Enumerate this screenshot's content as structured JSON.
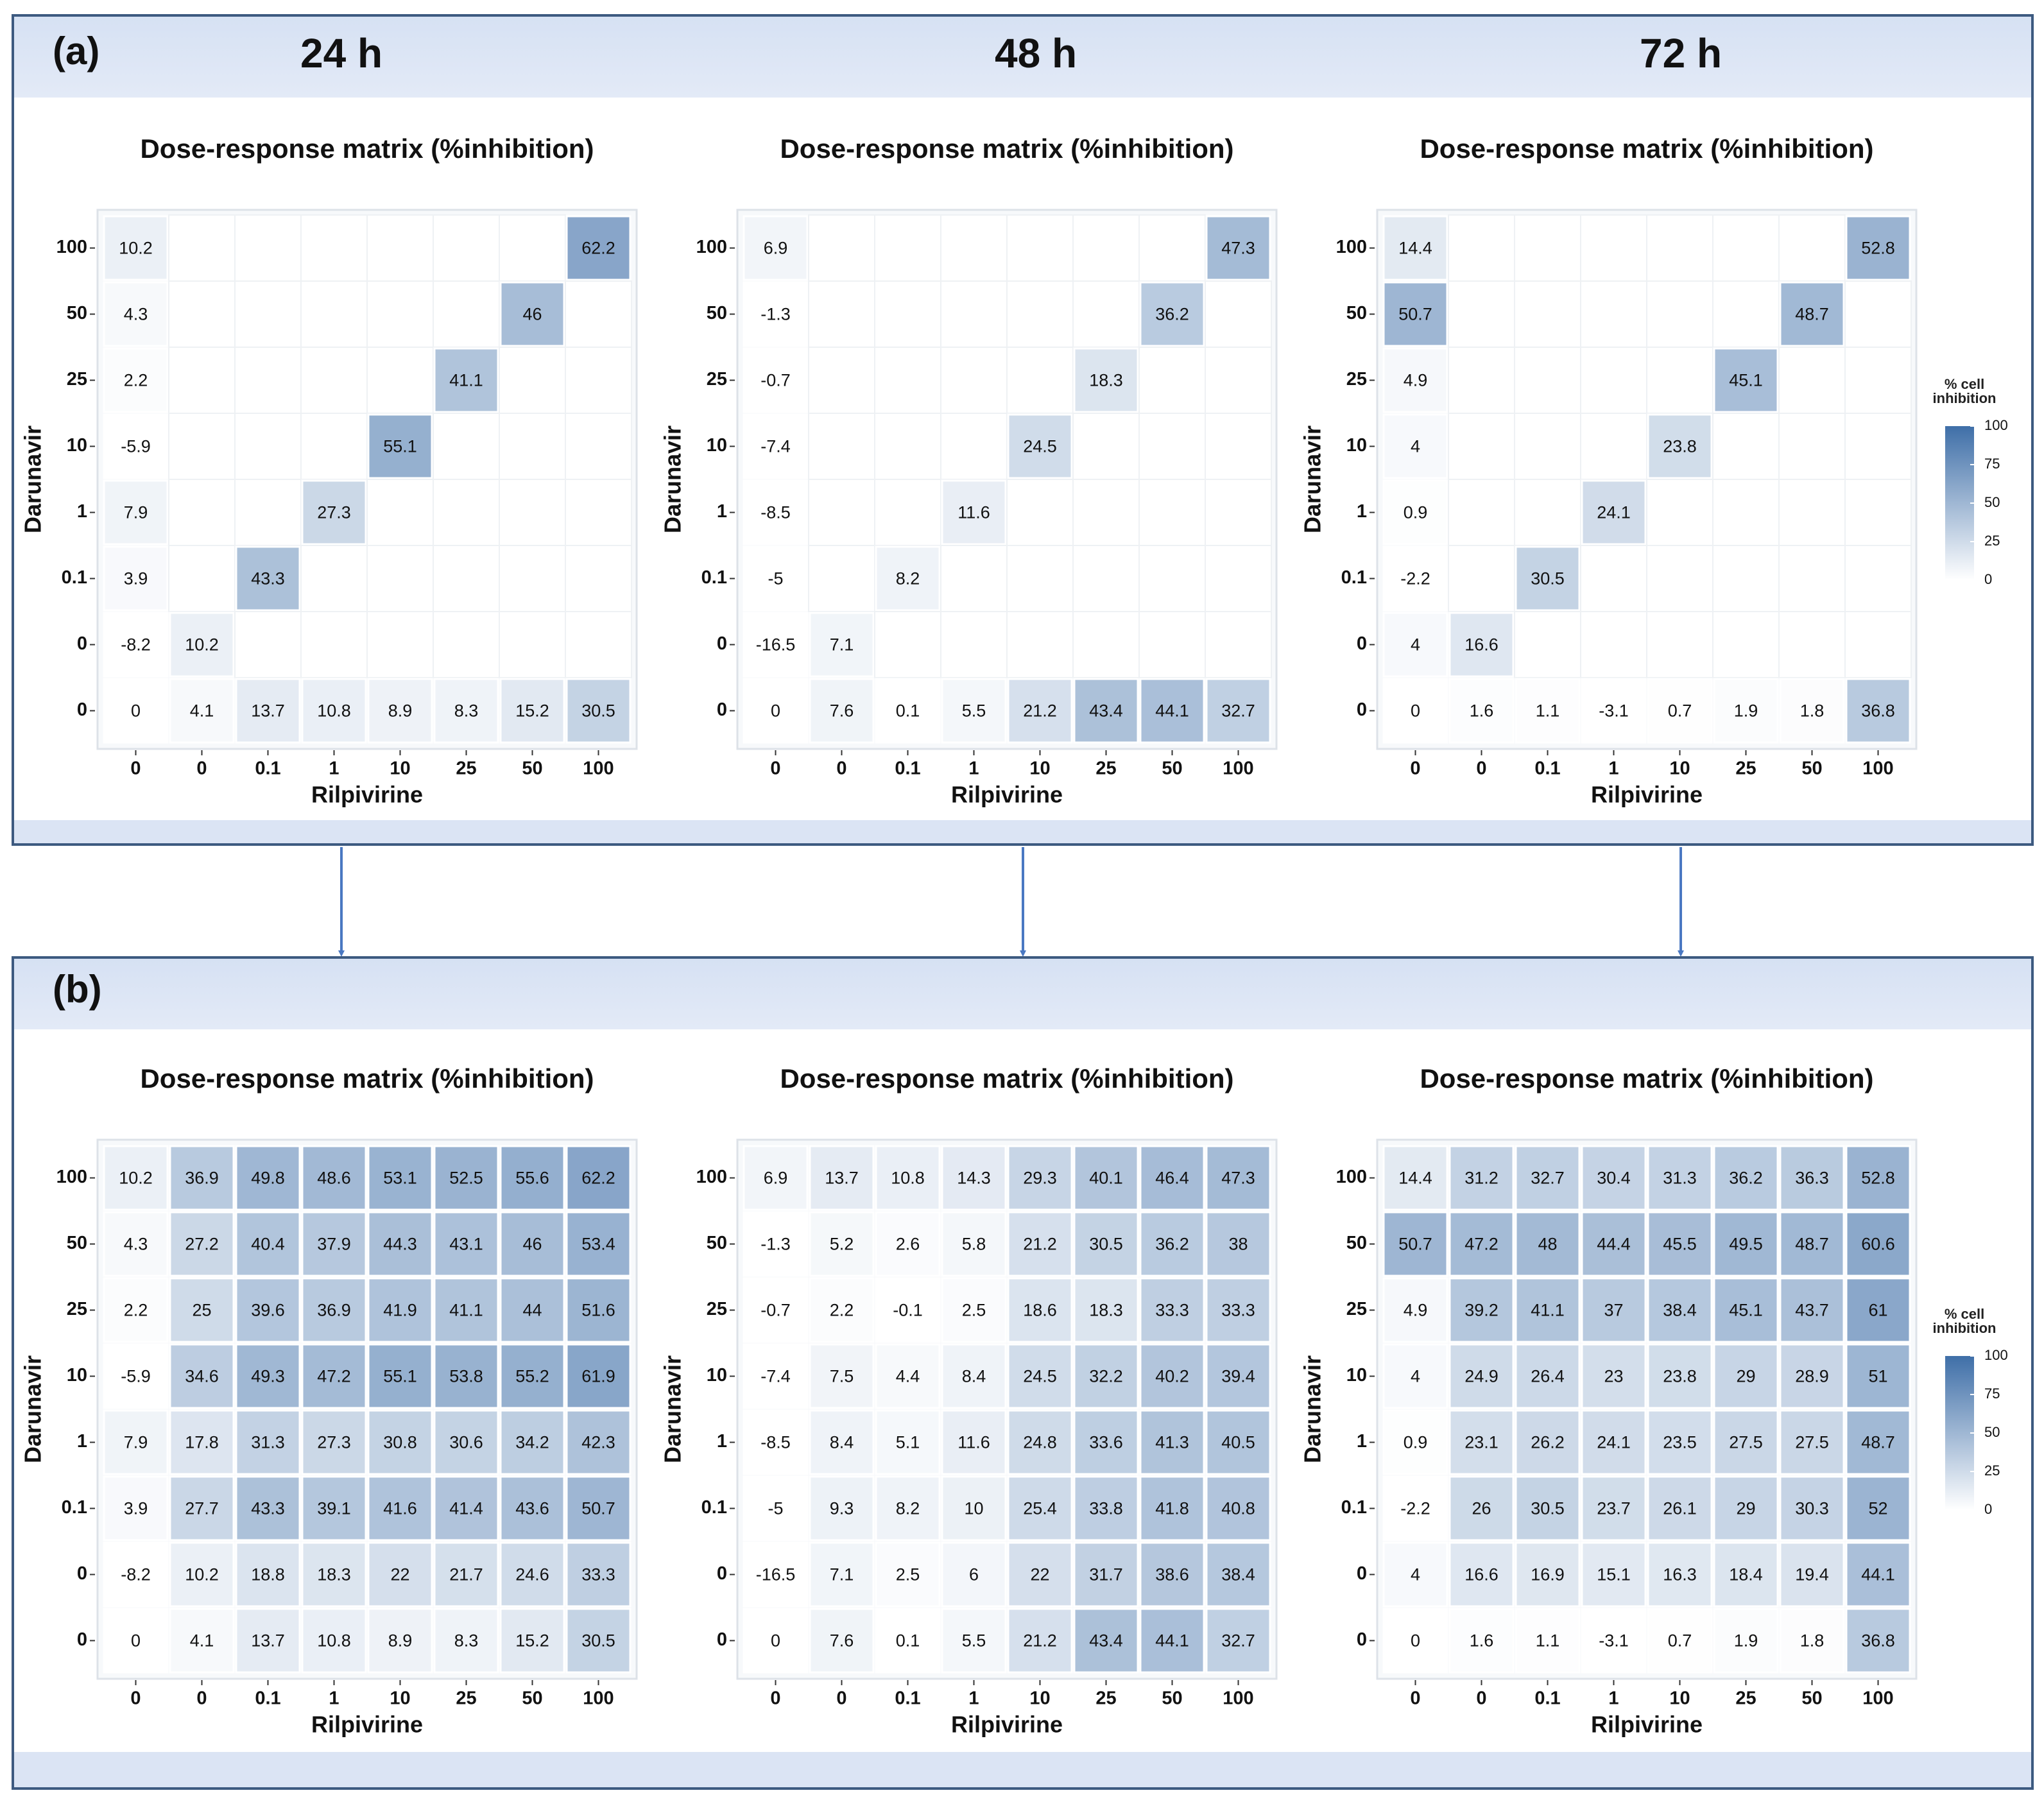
{
  "panels": [
    {
      "label": "(a)",
      "headings": [
        "24 h",
        "48 h",
        "72 h"
      ]
    },
    {
      "label": "(b)"
    }
  ],
  "chart_data": [
    {
      "type": "heatmap",
      "title": "Dose-response matrix (%inhibition)",
      "x_label": "Rilpivirine",
      "y_label": "Darunavir",
      "x_categories": [
        "0",
        "0",
        "0.1",
        "1",
        "10",
        "25",
        "50",
        "100"
      ],
      "y_categories": [
        "100",
        "50",
        "25",
        "10",
        "1",
        "0.1",
        "0",
        "0"
      ],
      "colorscale": {
        "lim": [
          0,
          100
        ],
        "colors": [
          "#ffffff",
          "#3f6fa8"
        ]
      },
      "values": [
        [
          10.2,
          null,
          null,
          null,
          null,
          null,
          null,
          62.2
        ],
        [
          4.3,
          null,
          null,
          null,
          null,
          null,
          46,
          null
        ],
        [
          2.2,
          null,
          null,
          null,
          null,
          41.1,
          null,
          null
        ],
        [
          -5.9,
          null,
          null,
          null,
          55.1,
          null,
          null,
          null
        ],
        [
          7.9,
          null,
          null,
          27.3,
          null,
          null,
          null,
          null
        ],
        [
          3.9,
          null,
          43.3,
          null,
          null,
          null,
          null,
          null
        ],
        [
          -8.2,
          10.2,
          null,
          null,
          null,
          null,
          null,
          null
        ],
        [
          0,
          4.1,
          13.7,
          10.8,
          8.9,
          8.3,
          15.2,
          30.5
        ]
      ]
    },
    {
      "type": "heatmap",
      "title": "Dose-response matrix (%inhibition)",
      "x_label": "Rilpivirine",
      "y_label": "Darunavir",
      "x_categories": [
        "0",
        "0",
        "0.1",
        "1",
        "10",
        "25",
        "50",
        "100"
      ],
      "y_categories": [
        "100",
        "50",
        "25",
        "10",
        "1",
        "0.1",
        "0",
        "0"
      ],
      "colorscale": {
        "lim": [
          0,
          100
        ],
        "colors": [
          "#ffffff",
          "#3f6fa8"
        ]
      },
      "values": [
        [
          6.9,
          null,
          null,
          null,
          null,
          null,
          null,
          47.3
        ],
        [
          -1.3,
          null,
          null,
          null,
          null,
          null,
          36.2,
          null
        ],
        [
          -0.7,
          null,
          null,
          null,
          null,
          18.3,
          null,
          null
        ],
        [
          -7.4,
          null,
          null,
          null,
          24.5,
          null,
          null,
          null
        ],
        [
          -8.5,
          null,
          null,
          11.6,
          null,
          null,
          null,
          null
        ],
        [
          -5,
          null,
          8.2,
          null,
          null,
          null,
          null,
          null
        ],
        [
          -16.5,
          7.1,
          null,
          null,
          null,
          null,
          null,
          null
        ],
        [
          0,
          7.6,
          0.1,
          5.5,
          21.2,
          43.4,
          44.1,
          32.7
        ]
      ]
    },
    {
      "type": "heatmap",
      "title": "Dose-response matrix (%inhibition)",
      "x_label": "Rilpivirine",
      "y_label": "Darunavir",
      "x_categories": [
        "0",
        "0",
        "0.1",
        "1",
        "10",
        "25",
        "50",
        "100"
      ],
      "y_categories": [
        "100",
        "50",
        "25",
        "10",
        "1",
        "0.1",
        "0",
        "0"
      ],
      "colorscale": {
        "lim": [
          0,
          100
        ],
        "colors": [
          "#ffffff",
          "#3f6fa8"
        ]
      },
      "colorbar": {
        "label": "% cell inhibition",
        "ticks": [
          0,
          25,
          50,
          75,
          100
        ]
      },
      "values": [
        [
          14.4,
          null,
          null,
          null,
          null,
          null,
          null,
          52.8
        ],
        [
          50.7,
          null,
          null,
          null,
          null,
          null,
          48.7,
          null
        ],
        [
          4.9,
          null,
          null,
          null,
          null,
          45.1,
          null,
          null
        ],
        [
          4,
          null,
          null,
          null,
          23.8,
          null,
          null,
          null
        ],
        [
          0.9,
          null,
          null,
          24.1,
          null,
          null,
          null,
          null
        ],
        [
          -2.2,
          null,
          30.5,
          null,
          null,
          null,
          null,
          null
        ],
        [
          4,
          16.6,
          null,
          null,
          null,
          null,
          null,
          null
        ],
        [
          0,
          1.6,
          1.1,
          -3.1,
          0.7,
          1.9,
          1.8,
          36.8
        ]
      ]
    },
    {
      "type": "heatmap",
      "title": "Dose-response matrix (%inhibition)",
      "x_label": "Rilpivirine",
      "y_label": "Darunavir",
      "x_categories": [
        "0",
        "0",
        "0.1",
        "1",
        "10",
        "25",
        "50",
        "100"
      ],
      "y_categories": [
        "100",
        "50",
        "25",
        "10",
        "1",
        "0.1",
        "0",
        "0"
      ],
      "colorscale": {
        "lim": [
          0,
          100
        ],
        "colors": [
          "#ffffff",
          "#3f6fa8"
        ]
      },
      "values": [
        [
          10.2,
          36.9,
          49.8,
          48.6,
          53.1,
          52.5,
          55.6,
          62.2
        ],
        [
          4.3,
          27.2,
          40.4,
          37.9,
          44.3,
          43.1,
          46,
          53.4
        ],
        [
          2.2,
          25,
          39.6,
          36.9,
          41.9,
          41.1,
          44,
          51.6
        ],
        [
          -5.9,
          34.6,
          49.3,
          47.2,
          55.1,
          53.8,
          55.2,
          61.9
        ],
        [
          7.9,
          17.8,
          31.3,
          27.3,
          30.8,
          30.6,
          34.2,
          42.3
        ],
        [
          3.9,
          27.7,
          43.3,
          39.1,
          41.6,
          41.4,
          43.6,
          50.7
        ],
        [
          -8.2,
          10.2,
          18.8,
          18.3,
          22,
          21.7,
          24.6,
          33.3
        ],
        [
          0,
          4.1,
          13.7,
          10.8,
          8.9,
          8.3,
          15.2,
          30.5
        ]
      ]
    },
    {
      "type": "heatmap",
      "title": "Dose-response matrix (%inhibition)",
      "x_label": "Rilpivirine",
      "y_label": "Darunavir",
      "x_categories": [
        "0",
        "0",
        "0.1",
        "1",
        "10",
        "25",
        "50",
        "100"
      ],
      "y_categories": [
        "100",
        "50",
        "25",
        "10",
        "1",
        "0.1",
        "0",
        "0"
      ],
      "colorscale": {
        "lim": [
          0,
          100
        ],
        "colors": [
          "#ffffff",
          "#3f6fa8"
        ]
      },
      "values": [
        [
          6.9,
          13.7,
          10.8,
          14.3,
          29.3,
          40.1,
          46.4,
          47.3
        ],
        [
          -1.3,
          5.2,
          2.6,
          5.8,
          21.2,
          30.5,
          36.2,
          38
        ],
        [
          -0.7,
          2.2,
          -0.1,
          2.5,
          18.6,
          18.3,
          33.3,
          33.3
        ],
        [
          -7.4,
          7.5,
          4.4,
          8.4,
          24.5,
          32.2,
          40.2,
          39.4
        ],
        [
          -8.5,
          8.4,
          5.1,
          11.6,
          24.8,
          33.6,
          41.3,
          40.5
        ],
        [
          -5,
          9.3,
          8.2,
          10,
          25.4,
          33.8,
          41.8,
          40.8
        ],
        [
          -16.5,
          7.1,
          2.5,
          6,
          22,
          31.7,
          38.6,
          38.4
        ],
        [
          0,
          7.6,
          0.1,
          5.5,
          21.2,
          43.4,
          44.1,
          32.7
        ]
      ]
    },
    {
      "type": "heatmap",
      "title": "Dose-response matrix (%inhibition)",
      "x_label": "Rilpivirine",
      "y_label": "Darunavir",
      "x_categories": [
        "0",
        "0",
        "0.1",
        "1",
        "10",
        "25",
        "50",
        "100"
      ],
      "y_categories": [
        "100",
        "50",
        "25",
        "10",
        "1",
        "0.1",
        "0",
        "0"
      ],
      "colorscale": {
        "lim": [
          0,
          100
        ],
        "colors": [
          "#ffffff",
          "#3f6fa8"
        ]
      },
      "colorbar": {
        "label": "% cell inhibition",
        "ticks": [
          0,
          25,
          50,
          75,
          100
        ]
      },
      "values": [
        [
          14.4,
          31.2,
          32.7,
          30.4,
          31.3,
          36.2,
          36.3,
          52.8
        ],
        [
          50.7,
          47.2,
          48,
          44.4,
          45.5,
          49.5,
          48.7,
          60.6
        ],
        [
          4.9,
          39.2,
          41.1,
          37,
          38.4,
          45.1,
          43.7,
          61
        ],
        [
          4,
          24.9,
          26.4,
          23,
          23.8,
          29,
          28.9,
          51
        ],
        [
          0.9,
          23.1,
          26.2,
          24.1,
          23.5,
          27.5,
          27.5,
          48.7
        ],
        [
          -2.2,
          26,
          30.5,
          23.7,
          26.1,
          29,
          30.3,
          52
        ],
        [
          4,
          16.6,
          16.9,
          15.1,
          16.3,
          18.4,
          19.4,
          44.1
        ],
        [
          0,
          1.6,
          1.1,
          -3.1,
          0.7,
          1.9,
          1.8,
          36.8
        ]
      ]
    }
  ]
}
